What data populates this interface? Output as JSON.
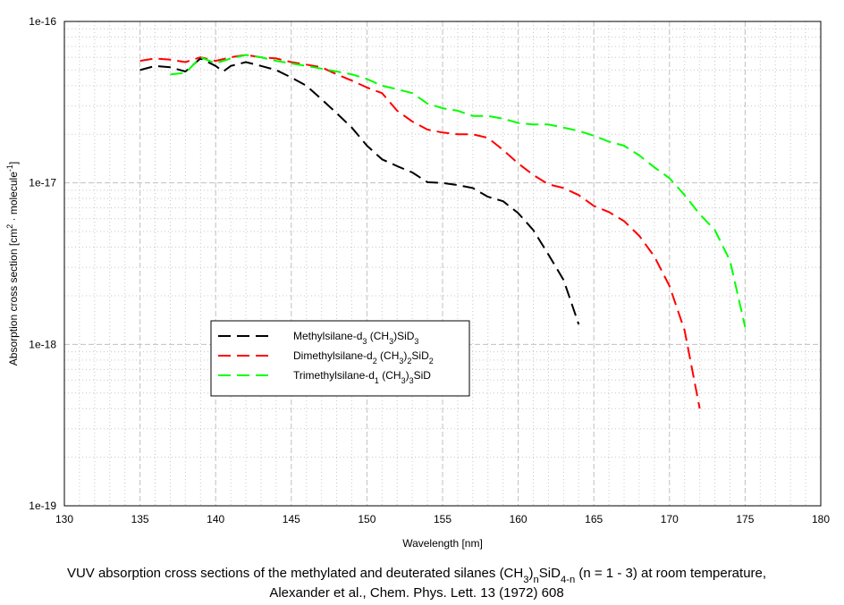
{
  "chart_data": {
    "type": "line",
    "title": "",
    "xlabel": "Wavelength [nm]",
    "ylabel_parts": [
      {
        "t": "Absorption cross section [cm"
      },
      {
        "sup": "2"
      },
      {
        "t": " · molecule"
      },
      {
        "sup": "-1"
      },
      {
        "t": "]"
      }
    ],
    "xlim": [
      130,
      180
    ],
    "ylim": [
      1e-19,
      1e-16
    ],
    "yscale": "log",
    "grid": true,
    "x_ticks": [
      "130",
      "135",
      "140",
      "145",
      "150",
      "155",
      "160",
      "165",
      "170",
      "175",
      "180"
    ],
    "y_ticks": [
      "1e-19",
      "1e-18",
      "1e-17",
      "1e-16"
    ],
    "legend_placement": "lower-left",
    "series": [
      {
        "name": "Methylsilane-d3 (CH3)SiD3",
        "legend_parts": [
          {
            "t": "Methylsilane-d"
          },
          {
            "sub": "3"
          },
          {
            "t": " (CH"
          },
          {
            "sub": "3"
          },
          {
            "t": ")SiD"
          },
          {
            "sub": "3"
          }
        ],
        "color": "#000000",
        "x": [
          135,
          136,
          137,
          138,
          139,
          140,
          140.5,
          141,
          142,
          143,
          144,
          145,
          146,
          147,
          148,
          149,
          150,
          151,
          152,
          153,
          154,
          155,
          156,
          157,
          158,
          159,
          160,
          161,
          162,
          163,
          164
        ],
        "y": [
          5e-17,
          5.3e-17,
          5.2e-17,
          4.9e-17,
          5.9e-17,
          5.3e-17,
          4.9e-17,
          5.3e-17,
          5.6e-17,
          5.3e-17,
          5e-17,
          4.5e-17,
          4e-17,
          3.3e-17,
          2.7e-17,
          2.2e-17,
          1.7e-17,
          1.4e-17,
          1.27e-17,
          1.16e-17,
          1.01e-17,
          1e-17,
          9.7e-18,
          9.3e-18,
          8.2e-18,
          7.7e-18,
          6.5e-18,
          5.1e-18,
          3.6e-18,
          2.5e-18,
          1.33e-18
        ]
      },
      {
        "name": "Dimethylsilane-d2 (CH3)2SiD2",
        "legend_parts": [
          {
            "t": "Dimethylsilane-d"
          },
          {
            "sub": "2"
          },
          {
            "t": " (CH"
          },
          {
            "sub": "3"
          },
          {
            "t": ")"
          },
          {
            "sub": "2"
          },
          {
            "t": "SiD"
          },
          {
            "sub": "2"
          }
        ],
        "color": "#ff0000",
        "x": [
          135,
          136,
          137,
          138,
          139,
          140,
          141,
          142,
          143,
          144,
          145,
          146,
          147,
          148,
          149,
          150,
          151,
          152,
          153,
          154,
          155,
          156,
          157,
          158,
          159,
          160,
          161,
          162,
          163,
          164,
          165,
          166,
          167,
          168,
          169,
          170,
          171,
          172
        ],
        "y": [
          5.7e-17,
          5.9e-17,
          5.8e-17,
          5.6e-17,
          6e-17,
          5.7e-17,
          6e-17,
          6.2e-17,
          6e-17,
          5.9e-17,
          5.6e-17,
          5.4e-17,
          5.2e-17,
          4.7e-17,
          4.3e-17,
          3.9e-17,
          3.6e-17,
          2.8e-17,
          2.4e-17,
          2.14e-17,
          2.05e-17,
          2e-17,
          2e-17,
          1.9e-17,
          1.6e-17,
          1.32e-17,
          1.12e-17,
          9.8e-18,
          9.3e-18,
          8.4e-18,
          7.2e-18,
          6.6e-18,
          5.8e-18,
          4.7e-18,
          3.5e-18,
          2.3e-18,
          1.22e-18,
          4e-19
        ]
      },
      {
        "name": "Trimethylsilane-d1 (CH3)3SiD",
        "legend_parts": [
          {
            "t": "Trimethylsilane-d"
          },
          {
            "sub": "1"
          },
          {
            "t": " (CH"
          },
          {
            "sub": "3"
          },
          {
            "t": ")"
          },
          {
            "sub": "3"
          },
          {
            "t": "SiD"
          }
        ],
        "color": "#00ff00",
        "x": [
          137,
          138,
          139,
          140,
          141,
          142,
          143,
          144,
          145,
          146,
          147,
          148,
          149,
          150,
          151,
          152,
          153,
          154,
          155,
          156,
          157,
          158,
          159,
          160,
          161,
          162,
          163,
          164,
          165,
          166,
          167,
          168,
          169,
          170,
          171,
          172,
          173,
          174,
          175
        ],
        "y": [
          4.7e-17,
          4.8e-17,
          6e-17,
          5.5e-17,
          5.9e-17,
          6.2e-17,
          6e-17,
          5.7e-17,
          5.5e-17,
          5.3e-17,
          5.1e-17,
          4.9e-17,
          4.7e-17,
          4.4e-17,
          4e-17,
          3.8e-17,
          3.6e-17,
          3.1e-17,
          2.9e-17,
          2.8e-17,
          2.6e-17,
          2.6e-17,
          2.5e-17,
          2.35e-17,
          2.3e-17,
          2.3e-17,
          2.2e-17,
          2.1e-17,
          1.96e-17,
          1.8e-17,
          1.7e-17,
          1.48e-17,
          1.25e-17,
          1.07e-17,
          8.4e-18,
          6.4e-18,
          5.1e-18,
          3.3e-18,
          1.28e-18
        ]
      }
    ]
  },
  "caption": {
    "line1_parts": [
      {
        "t": "VUV absorption cross sections of the methylated and deuterated silanes (CH"
      },
      {
        "sub": "3"
      },
      {
        "t": ")"
      },
      {
        "sub": "n"
      },
      {
        "t": "SiD"
      },
      {
        "sub": "4-n"
      },
      {
        "t": " (n = 1 - 3) at room temperature,"
      }
    ],
    "line2": "Alexander et al., Chem. Phys. Lett. 13 (1972) 608"
  }
}
